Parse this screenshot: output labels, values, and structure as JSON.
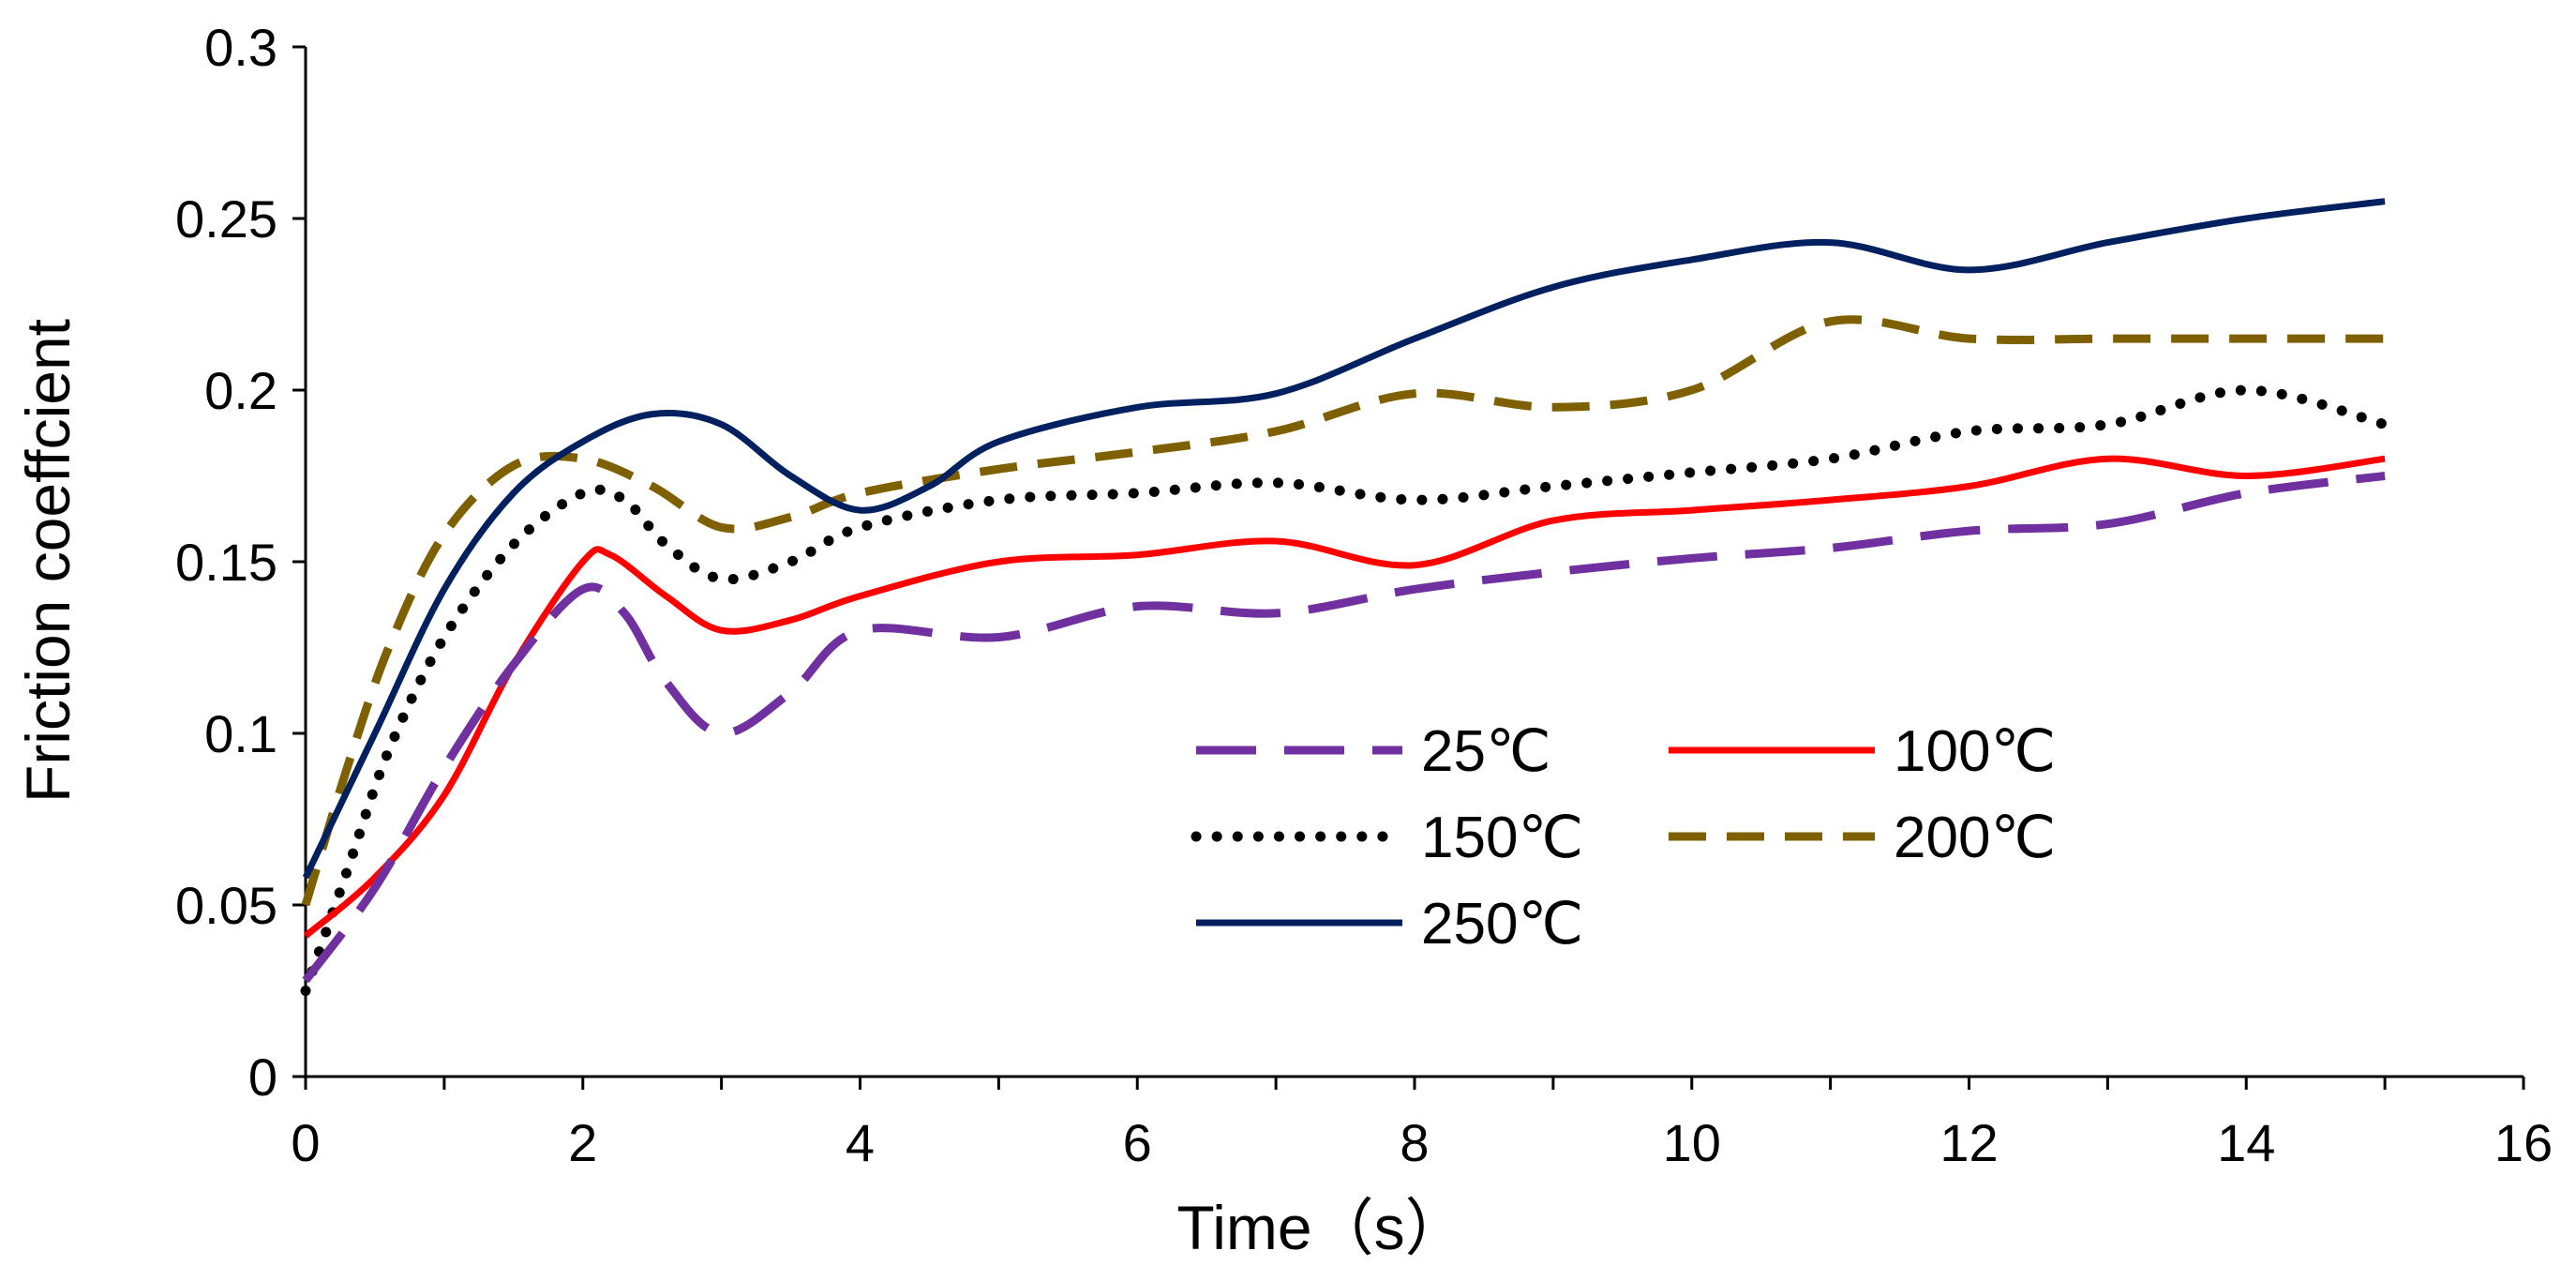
{
  "chart_data": {
    "type": "line",
    "title": "",
    "xlabel": "Time（s）",
    "ylabel": "Friction coeffcient",
    "xlim": [
      0,
      16
    ],
    "ylim": [
      0,
      0.3
    ],
    "x_ticks": [
      "0",
      "2",
      "4",
      "6",
      "8",
      "10",
      "12",
      "14",
      "16"
    ],
    "y_ticks": [
      "0",
      "0.05",
      "0.1",
      "0.15",
      "0.2",
      "0.25",
      "0.3"
    ],
    "grid": false,
    "legend_position": "center-right",
    "series": [
      {
        "name": "25℃",
        "style": "long-dash",
        "color": "#7030A0",
        "points": [
          [
            0,
            0.028
          ],
          [
            0.5,
            0.055
          ],
          [
            1,
            0.09
          ],
          [
            1.5,
            0.12
          ],
          [
            2,
            0.142
          ],
          [
            2.3,
            0.135
          ],
          [
            2.6,
            0.115
          ],
          [
            3,
            0.1
          ],
          [
            3.5,
            0.112
          ],
          [
            4,
            0.13
          ],
          [
            5,
            0.128
          ],
          [
            6,
            0.137
          ],
          [
            7,
            0.135
          ],
          [
            8,
            0.142
          ],
          [
            9,
            0.147
          ],
          [
            10,
            0.151
          ],
          [
            11,
            0.154
          ],
          [
            12,
            0.159
          ],
          [
            13,
            0.161
          ],
          [
            14,
            0.17
          ],
          [
            15,
            0.175
          ]
        ]
      },
      {
        "name": "100℃",
        "style": "solid",
        "color": "#FF0000",
        "points": [
          [
            0,
            0.041
          ],
          [
            0.5,
            0.058
          ],
          [
            1,
            0.082
          ],
          [
            1.5,
            0.12
          ],
          [
            2,
            0.15
          ],
          [
            2.2,
            0.152
          ],
          [
            2.6,
            0.14
          ],
          [
            3,
            0.13
          ],
          [
            3.5,
            0.133
          ],
          [
            4,
            0.14
          ],
          [
            5,
            0.15
          ],
          [
            6,
            0.152
          ],
          [
            7,
            0.156
          ],
          [
            8,
            0.149
          ],
          [
            9,
            0.162
          ],
          [
            10,
            0.165
          ],
          [
            11,
            0.168
          ],
          [
            12,
            0.172
          ],
          [
            13,
            0.18
          ],
          [
            14,
            0.175
          ],
          [
            15,
            0.18
          ]
        ]
      },
      {
        "name": "150℃",
        "style": "dotted",
        "color": "#000000",
        "points": [
          [
            0,
            0.025
          ],
          [
            0.3,
            0.06
          ],
          [
            0.6,
            0.095
          ],
          [
            1,
            0.128
          ],
          [
            1.5,
            0.155
          ],
          [
            2,
            0.17
          ],
          [
            2.3,
            0.168
          ],
          [
            2.6,
            0.155
          ],
          [
            3,
            0.145
          ],
          [
            3.5,
            0.15
          ],
          [
            4,
            0.16
          ],
          [
            5,
            0.168
          ],
          [
            6,
            0.17
          ],
          [
            7,
            0.173
          ],
          [
            8,
            0.168
          ],
          [
            9,
            0.172
          ],
          [
            10,
            0.176
          ],
          [
            11,
            0.18
          ],
          [
            12,
            0.188
          ],
          [
            13,
            0.19
          ],
          [
            14,
            0.2
          ],
          [
            15,
            0.19
          ]
        ]
      },
      {
        "name": "200℃",
        "style": "dashed",
        "color": "#7F6000",
        "points": [
          [
            0,
            0.05
          ],
          [
            0.3,
            0.09
          ],
          [
            0.6,
            0.125
          ],
          [
            1,
            0.158
          ],
          [
            1.5,
            0.178
          ],
          [
            2,
            0.18
          ],
          [
            2.5,
            0.172
          ],
          [
            3,
            0.16
          ],
          [
            3.5,
            0.163
          ],
          [
            4,
            0.17
          ],
          [
            5,
            0.177
          ],
          [
            6,
            0.182
          ],
          [
            7,
            0.188
          ],
          [
            8,
            0.199
          ],
          [
            9,
            0.195
          ],
          [
            10,
            0.2
          ],
          [
            11,
            0.22
          ],
          [
            12,
            0.215
          ],
          [
            13,
            0.215
          ],
          [
            14,
            0.215
          ],
          [
            15,
            0.215
          ]
        ]
      },
      {
        "name": "250℃",
        "style": "solid",
        "color": "#002060",
        "points": [
          [
            0,
            0.058
          ],
          [
            0.5,
            0.1
          ],
          [
            1,
            0.142
          ],
          [
            1.5,
            0.17
          ],
          [
            2,
            0.185
          ],
          [
            2.5,
            0.193
          ],
          [
            3,
            0.19
          ],
          [
            3.5,
            0.175
          ],
          [
            4,
            0.165
          ],
          [
            4.5,
            0.172
          ],
          [
            5,
            0.185
          ],
          [
            6,
            0.195
          ],
          [
            7,
            0.199
          ],
          [
            8,
            0.215
          ],
          [
            9,
            0.23
          ],
          [
            10,
            0.238
          ],
          [
            11,
            0.243
          ],
          [
            12,
            0.235
          ],
          [
            13,
            0.243
          ],
          [
            14,
            0.25
          ],
          [
            15,
            0.255
          ]
        ]
      }
    ]
  }
}
